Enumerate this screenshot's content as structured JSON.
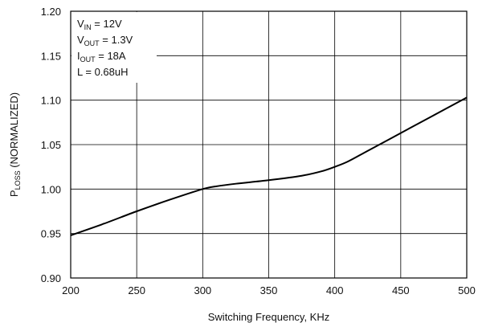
{
  "chart_data": {
    "type": "line",
    "title": "",
    "xlabel": "Switching Frequency, KHz",
    "ylabel": {
      "main": "P",
      "sub": "LOSS",
      "rest": " (NORMALIZED)"
    },
    "xlim": [
      200,
      500
    ],
    "ylim": [
      0.9,
      1.2
    ],
    "xticks": [
      "200",
      "250",
      "300",
      "350",
      "400",
      "450",
      "500"
    ],
    "yticks": [
      "0.90",
      "0.95",
      "1.00",
      "1.05",
      "1.10",
      "1.15",
      "1.20"
    ],
    "grid": true,
    "legend": "none",
    "annotation": [
      {
        "main": "V",
        "sub": "IN",
        "rest": " = 12V"
      },
      {
        "main": "V",
        "sub": "OUT",
        "rest": " = 1.3V"
      },
      {
        "main": "I",
        "sub": "OUT",
        "rest": " = 18A"
      },
      {
        "main": "L = 0.68uH",
        "sub": "",
        "rest": ""
      }
    ],
    "series": [
      {
        "x": [
          200,
          225,
          250,
          275,
          300,
          310,
          325,
          350,
          375,
          390,
          400,
          410,
          425,
          450,
          475,
          500
        ],
        "y": [
          0.948,
          0.961,
          0.975,
          0.988,
          1.0,
          1.003,
          1.006,
          1.01,
          1.015,
          1.02,
          1.025,
          1.031,
          1.043,
          1.063,
          1.083,
          1.103
        ]
      }
    ],
    "colors": {
      "line": "#000000",
      "grid": "#000000",
      "frame": "#000000"
    }
  }
}
